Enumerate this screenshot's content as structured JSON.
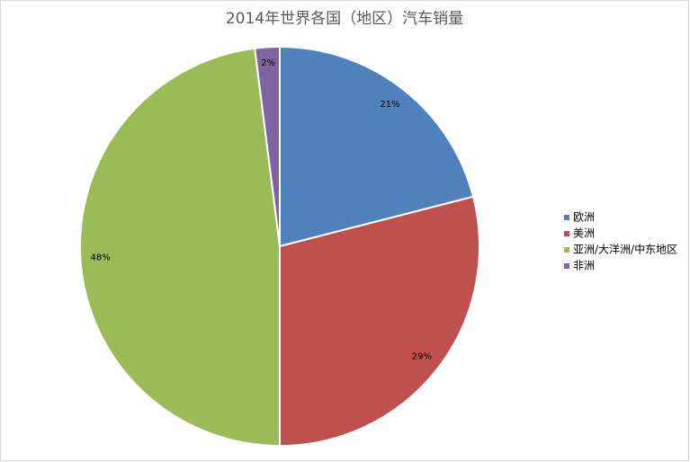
{
  "chart_data": {
    "type": "pie",
    "title": "2014年世界各国（地区）汽车销量",
    "categories": [
      "欧洲",
      "美洲",
      "亚洲/大洋洲/中东地区",
      "非洲"
    ],
    "values": [
      21,
      29,
      48,
      2
    ],
    "value_labels": [
      "21%",
      "29%",
      "48%",
      "2%"
    ],
    "colors": [
      "#4f81bd",
      "#c0504d",
      "#9bbb59",
      "#8064a2"
    ],
    "legend": "right"
  }
}
